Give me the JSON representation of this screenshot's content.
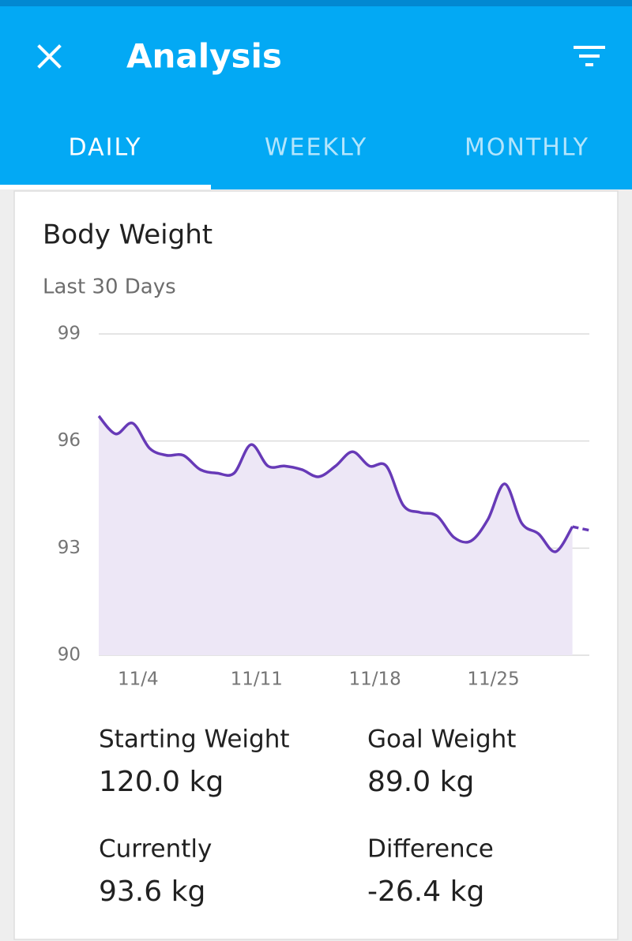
{
  "header": {
    "title": "Analysis"
  },
  "tabs": [
    "DAILY",
    "WEEKLY",
    "MONTHLY"
  ],
  "card": {
    "title": "Body Weight",
    "subtitle": "Last 30 Days"
  },
  "chart_data": {
    "type": "line",
    "categories": [
      null,
      null,
      "11/4",
      null,
      null,
      null,
      null,
      null,
      null,
      "11/11",
      null,
      null,
      null,
      null,
      null,
      null,
      "11/18",
      null,
      null,
      null,
      null,
      null,
      null,
      "11/25",
      null,
      null,
      null,
      null,
      null,
      null
    ],
    "series": [
      {
        "color": "#673ab7",
        "area": true,
        "area_color": "#ede7f6",
        "dashed": false,
        "values": [
          96.7,
          96.2,
          96.5,
          95.8,
          95.6,
          95.6,
          95.2,
          95.1,
          95.1,
          95.9,
          95.3,
          95.3,
          95.2,
          95.0,
          95.3,
          95.7,
          95.3,
          95.3,
          94.2,
          94.0,
          93.9,
          93.3,
          93.2,
          93.8,
          94.8,
          93.7,
          93.4,
          92.9,
          93.6,
          null
        ]
      },
      {
        "color": "#673ab7",
        "area": false,
        "dashed": true,
        "values": [
          null,
          null,
          null,
          null,
          null,
          null,
          null,
          null,
          null,
          null,
          null,
          null,
          null,
          null,
          null,
          null,
          null,
          null,
          null,
          null,
          null,
          null,
          null,
          null,
          null,
          null,
          null,
          null,
          93.6,
          93.5
        ]
      }
    ],
    "ylim": [
      90,
      99
    ],
    "yticks": [
      90,
      93,
      96,
      99
    ],
    "grid": true
  },
  "stats": [
    {
      "label": "Starting Weight",
      "value": "120.0 kg"
    },
    {
      "label": "Goal Weight",
      "value": "89.0 kg"
    },
    {
      "label": "Currently",
      "value": "93.6 kg"
    },
    {
      "label": "Difference",
      "value": "-26.4 kg"
    }
  ]
}
